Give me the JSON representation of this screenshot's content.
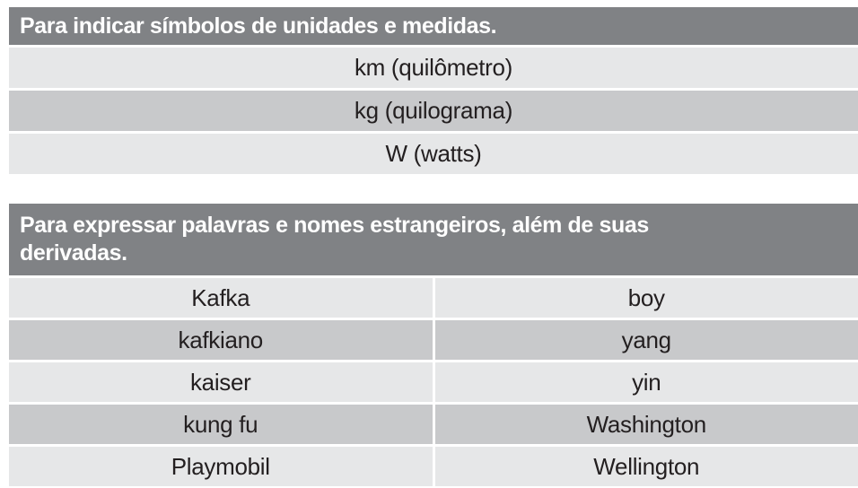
{
  "colors": {
    "header_background": "#808285",
    "header_text": "#ffffff",
    "row_light": "#e6e7e8",
    "row_medium": "#c8c9cb",
    "body_text": "#231f20",
    "page_background": "#ffffff"
  },
  "table_units": {
    "title": "Para indicar símbolos de unidades e medidas.",
    "rows": [
      "km (quilômetro)",
      "kg (quilograma)",
      "W (watts)"
    ]
  },
  "table_foreign": {
    "title": "Para expressar palavras e nomes estrangeiros, além de suas\nderivadas.",
    "rows": [
      {
        "left": "Kafka",
        "right": "boy"
      },
      {
        "left": "kafkiano",
        "right": "yang"
      },
      {
        "left": "kaiser",
        "right": "yin"
      },
      {
        "left": "kung fu",
        "right": "Washington"
      },
      {
        "left": "Playmobil",
        "right": "Wellington"
      }
    ]
  }
}
